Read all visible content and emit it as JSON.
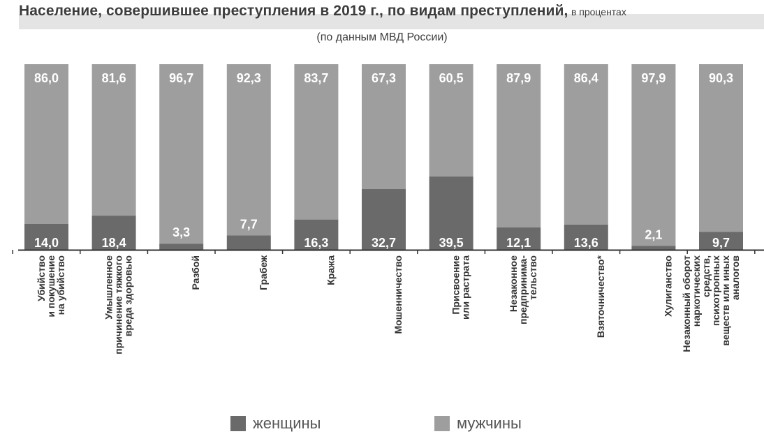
{
  "chart_data": {
    "type": "bar",
    "stacked": true,
    "title": "Население, совершившее преступления в 2019 г., по видам преступлений,",
    "units_note": "в процентах",
    "subtitle": "(по данным МВД России)",
    "categories": [
      "Убийство и покушение на убийство",
      "Умышленное причинение тяжкого вреда здоровью",
      "Разбой",
      "Грабеж",
      "Кража",
      "Мошенничество",
      "Присвоение или растрата",
      "Незаконное предпринима-тельство",
      "Взяточничество*",
      "Хулиганство",
      "Незаконный оборот наркотических средств, психотропных веществ или иных аналогов"
    ],
    "category_lines": [
      [
        "Убийство",
        "и покушение",
        "на убийство"
      ],
      [
        "Умышленное",
        "причинение тяжкого",
        "вреда здоровью"
      ],
      [
        "Разбой"
      ],
      [
        "Грабеж"
      ],
      [
        "Кража"
      ],
      [
        "Мошенничество"
      ],
      [
        "Присвоение",
        "или растрата"
      ],
      [
        "Незаконное",
        "предпринима-",
        "тельство"
      ],
      [
        "Взяточничество*"
      ],
      [
        "Хулиганство"
      ],
      [
        "Незаконный оборот",
        "наркотических",
        "средств,",
        "психотропных",
        "веществ или иных",
        "аналогов"
      ]
    ],
    "series": [
      {
        "name": "женщины",
        "color": "#6a6a6a",
        "values": [
          14.0,
          18.4,
          3.3,
          7.7,
          16.3,
          32.7,
          39.5,
          12.1,
          13.6,
          2.1,
          9.7
        ],
        "labels": [
          "14,0",
          "18,4",
          "3,3",
          "7,7",
          "16,3",
          "32,7",
          "39,5",
          "12,1",
          "13,6",
          "2,1",
          "9,7"
        ]
      },
      {
        "name": "мужчины",
        "color": "#9e9e9e",
        "values": [
          86.0,
          81.6,
          96.7,
          92.3,
          83.7,
          67.3,
          60.5,
          87.9,
          86.4,
          97.9,
          90.3
        ],
        "labels": [
          "86,0",
          "81,6",
          "96,7",
          "92,3",
          "83,7",
          "67,3",
          "60,5",
          "87,9",
          "86,4",
          "97,9",
          "90,3"
        ]
      }
    ],
    "ylim": [
      0,
      100
    ],
    "grid": false,
    "legend_position": "bottom"
  }
}
